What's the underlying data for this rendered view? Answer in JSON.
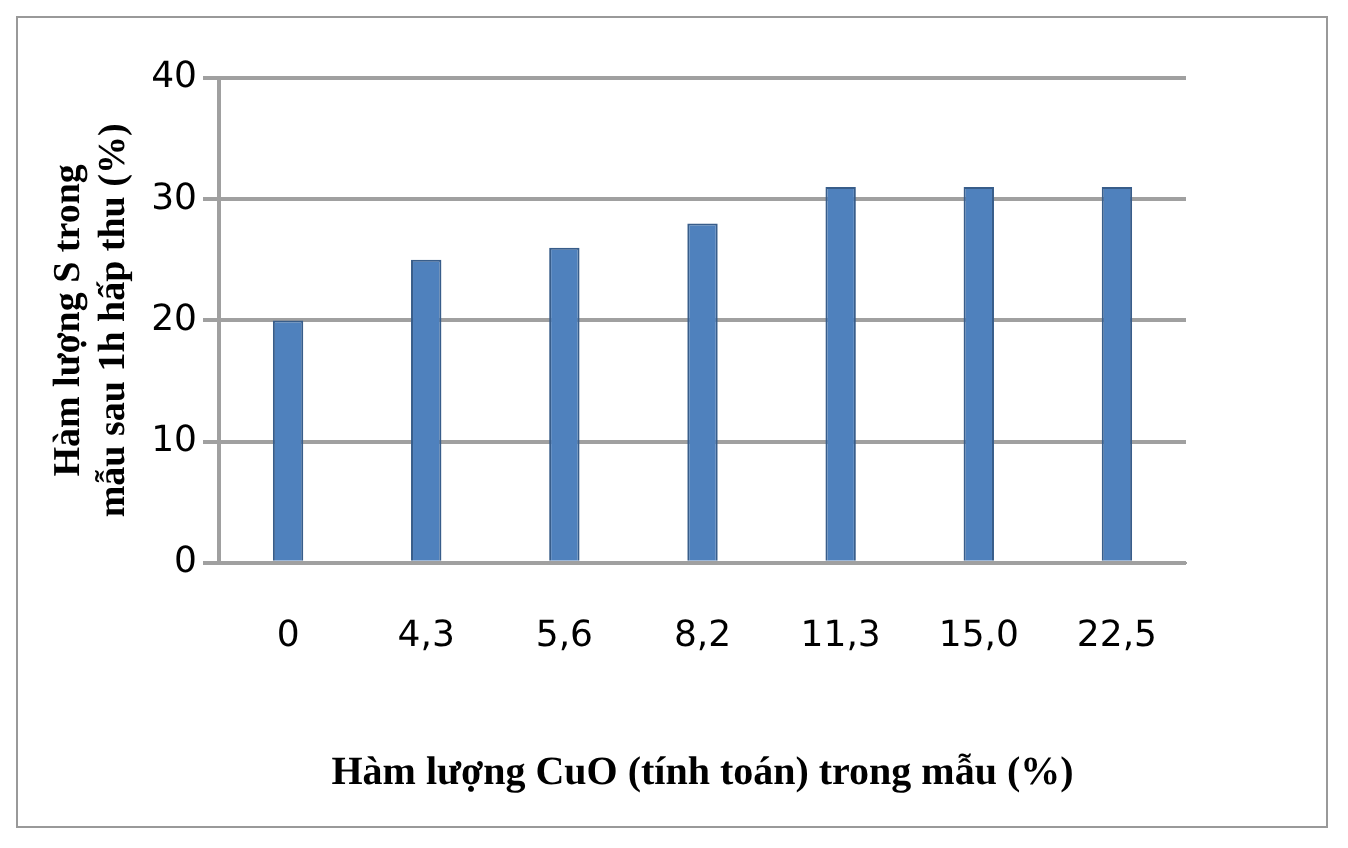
{
  "chart_data": {
    "type": "bar",
    "xlabel": "Hàm lượng CuO (tính toán) trong mẫu (%)",
    "ylabel": "Hàm lượng S trong mẫu sau 1h hấp thu (%)",
    "categories": [
      "0",
      "4,3",
      "5,6",
      "8,2",
      "11,3",
      "15,0",
      "22,5"
    ],
    "values": [
      20,
      25,
      26,
      28,
      31,
      31,
      31
    ],
    "color": "#4f81bd",
    "ylim": [
      0,
      40
    ],
    "yticks": [
      0,
      10,
      20,
      30,
      40
    ],
    "grid": "y",
    "legend": false
  }
}
